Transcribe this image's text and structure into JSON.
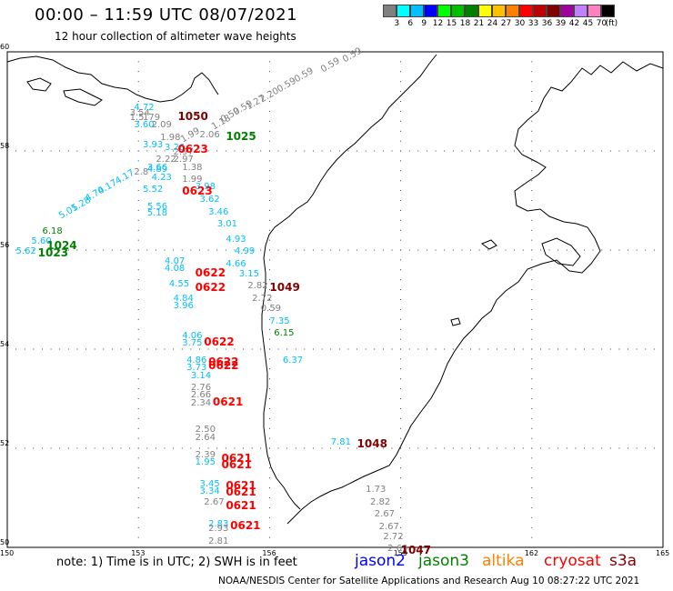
{
  "header": {
    "title": "00:00 – 11:59 UTC 08/07/2021",
    "subtitle": "12 hour collection of altimeter wave heights"
  },
  "colorbar": {
    "colors": [
      "#808080",
      "#00ffff",
      "#00bfff",
      "#0000ff",
      "#00ff00",
      "#00c000",
      "#008000",
      "#ffff00",
      "#ffc000",
      "#ff8000",
      "#ff0000",
      "#c00000",
      "#800000",
      "#a000a0",
      "#c080ff",
      "#ff80c0",
      "#000000"
    ],
    "ticks": [
      "3",
      "6",
      "9",
      "12",
      "15",
      "18",
      "21",
      "24",
      "27",
      "30",
      "33",
      "36",
      "39",
      "42",
      "45",
      "70",
      "(ft)"
    ]
  },
  "axes": {
    "x_ticks": [
      "150",
      "153",
      "156",
      "159",
      "162",
      "165"
    ],
    "y_ticks": [
      "60",
      "58",
      "56",
      "54",
      "52",
      "50"
    ]
  },
  "footer": {
    "note": "note:  1) Time is in UTC;  2) SWH is in feet",
    "credit": "NOAA/NESDIS Center for Satellite Applications and Research    Aug 10 08:27:22 UTC 2021"
  },
  "satellites": [
    {
      "name": "jason2",
      "color": "#0000ff"
    },
    {
      "name": "jason3",
      "color": "#008000"
    },
    {
      "name": "altika",
      "color": "#ff8000"
    },
    {
      "name": "cryosat",
      "color": "#ff0000"
    },
    {
      "name": "s3a",
      "color": "#800000"
    }
  ],
  "measurements": [
    {
      "text": "0.59",
      "lon": 157.7,
      "lat": 59.9,
      "color": "#808080",
      "rot": -30
    },
    {
      "text": "0.59",
      "lon": 157.2,
      "lat": 59.7,
      "color": "#808080",
      "rot": -30
    },
    {
      "text": "0.59",
      "lon": 156.6,
      "lat": 59.5,
      "color": "#808080",
      "rot": -30
    },
    {
      "text": "0.59",
      "lon": 156.2,
      "lat": 59.3,
      "color": "#808080",
      "rot": -30
    },
    {
      "text": "2.20",
      "lon": 155.8,
      "lat": 59.1,
      "color": "#808080",
      "rot": -30
    },
    {
      "text": "1.27",
      "lon": 155.5,
      "lat": 58.95,
      "color": "#808080",
      "rot": -30
    },
    {
      "text": "0.59",
      "lon": 155.2,
      "lat": 58.85,
      "color": "#808080",
      "rot": -30
    },
    {
      "text": "0.59",
      "lon": 154.9,
      "lat": 58.7,
      "color": "#808080",
      "rot": -30
    },
    {
      "text": "1.18",
      "lon": 154.7,
      "lat": 58.55,
      "color": "#808080",
      "rot": -30
    },
    {
      "text": "2.06",
      "lon": 154.4,
      "lat": 58.4,
      "color": "#808080",
      "rot": 0
    },
    {
      "text": "1.99",
      "lon": 154.0,
      "lat": 58.3,
      "color": "#808080",
      "rot": -30
    },
    {
      "text": "4.72",
      "lon": 152.9,
      "lat": 58.95,
      "color": "#00bfff",
      "rot": 0
    },
    {
      "text": "3.54",
      "lon": 152.8,
      "lat": 58.85,
      "color": "#808080",
      "rot": 0
    },
    {
      "text": "1.5",
      "lon": 152.8,
      "lat": 58.75,
      "color": "#808080",
      "rot": 0
    },
    {
      "text": "179",
      "lon": 153.1,
      "lat": 58.75,
      "color": "#808080",
      "rot": 0
    },
    {
      "text": "3.60",
      "lon": 152.9,
      "lat": 58.6,
      "color": "#00bfff",
      "rot": 0
    },
    {
      "text": "2.09",
      "lon": 153.3,
      "lat": 58.6,
      "color": "#808080",
      "rot": 0
    },
    {
      "text": "1.98",
      "lon": 153.5,
      "lat": 58.35,
      "color": "#808080",
      "rot": 0
    },
    {
      "text": "3.93",
      "lon": 153.1,
      "lat": 58.2,
      "color": "#00bfff",
      "rot": 0
    },
    {
      "text": "3.26",
      "lon": 153.6,
      "lat": 58.15,
      "color": "#00bfff",
      "rot": 0
    },
    {
      "text": "2.97",
      "lon": 153.8,
      "lat": 58.05,
      "color": "#808080",
      "rot": 0
    },
    {
      "text": "2.97",
      "lon": 153.8,
      "lat": 57.9,
      "color": "#808080",
      "rot": 0
    },
    {
      "text": "2.22",
      "lon": 153.4,
      "lat": 57.9,
      "color": "#808080",
      "rot": 0
    },
    {
      "text": "3.66",
      "lon": 153.2,
      "lat": 57.75,
      "color": "#00bfff",
      "rot": 0
    },
    {
      "text": "2.8",
      "lon": 152.9,
      "lat": 57.65,
      "color": "#808080",
      "rot": 0
    },
    {
      "text": "4.89",
      "lon": 153.2,
      "lat": 57.7,
      "color": "#00bfff",
      "rot": 0
    },
    {
      "text": "4.23",
      "lon": 153.3,
      "lat": 57.55,
      "color": "#00bfff",
      "rot": 0
    },
    {
      "text": "1.38",
      "lon": 154.0,
      "lat": 57.75,
      "color": "#808080",
      "rot": 0
    },
    {
      "text": "1.99",
      "lon": 154.0,
      "lat": 57.5,
      "color": "#808080",
      "rot": 0
    },
    {
      "text": "5.52",
      "lon": 153.1,
      "lat": 57.3,
      "color": "#00bfff",
      "rot": 0
    },
    {
      "text": "3.98",
      "lon": 154.3,
      "lat": 57.35,
      "color": "#00bfff",
      "rot": 0
    },
    {
      "text": "3.62",
      "lon": 154.4,
      "lat": 57.1,
      "color": "#00bfff",
      "rot": 0
    },
    {
      "text": "5.56",
      "lon": 153.2,
      "lat": 56.95,
      "color": "#00bfff",
      "rot": 0
    },
    {
      "text": "5.18",
      "lon": 153.2,
      "lat": 56.82,
      "color": "#00bfff",
      "rot": 0
    },
    {
      "text": "3.46",
      "lon": 154.6,
      "lat": 56.85,
      "color": "#00bfff",
      "rot": 0
    },
    {
      "text": "3.01",
      "lon": 154.8,
      "lat": 56.6,
      "color": "#00bfff",
      "rot": 0
    },
    {
      "text": "4.93",
      "lon": 155.0,
      "lat": 56.3,
      "color": "#00bfff",
      "rot": 0
    },
    {
      "text": "4.99",
      "lon": 155.2,
      "lat": 56.05,
      "color": "#00bfff",
      "rot": 0
    },
    {
      "text": "4.17",
      "lon": 152.5,
      "lat": 57.45,
      "color": "#00bfff",
      "rot": -30
    },
    {
      "text": "4.17",
      "lon": 152.1,
      "lat": 57.25,
      "color": "#00bfff",
      "rot": -30
    },
    {
      "text": "4.70",
      "lon": 151.8,
      "lat": 57.1,
      "color": "#00bfff",
      "rot": -30
    },
    {
      "text": "5.28",
      "lon": 151.5,
      "lat": 56.9,
      "color": "#00bfff",
      "rot": -30
    },
    {
      "text": "5.01",
      "lon": 151.2,
      "lat": 56.75,
      "color": "#00bfff",
      "rot": -30
    },
    {
      "text": "6.18",
      "lon": 150.8,
      "lat": 56.45,
      "color": "#008000",
      "rot": 0
    },
    {
      "text": "5.60",
      "lon": 150.55,
      "lat": 56.25,
      "color": "#00bfff",
      "rot": 0
    },
    {
      "text": "5.62",
      "lon": 150.2,
      "lat": 56.05,
      "color": "#00bfff",
      "rot": 0
    },
    {
      "text": "4.07",
      "lon": 153.6,
      "lat": 55.85,
      "color": "#00bfff",
      "rot": 0
    },
    {
      "text": "4.08",
      "lon": 153.6,
      "lat": 55.7,
      "color": "#00bfff",
      "rot": 0
    },
    {
      "text": "4.66",
      "lon": 155.0,
      "lat": 55.8,
      "color": "#00bfff",
      "rot": 0
    },
    {
      "text": "3.15",
      "lon": 155.3,
      "lat": 55.6,
      "color": "#00bfff",
      "rot": 0
    },
    {
      "text": "4.55",
      "lon": 153.7,
      "lat": 55.4,
      "color": "#00bfff",
      "rot": 0
    },
    {
      "text": "2.82",
      "lon": 155.5,
      "lat": 55.35,
      "color": "#808080",
      "rot": 0
    },
    {
      "text": "2.72",
      "lon": 155.6,
      "lat": 55.1,
      "color": "#808080",
      "rot": 0
    },
    {
      "text": "4.84",
      "lon": 153.8,
      "lat": 55.1,
      "color": "#00bfff",
      "rot": 0
    },
    {
      "text": "3.96",
      "lon": 153.8,
      "lat": 54.95,
      "color": "#00bfff",
      "rot": 0
    },
    {
      "text": "0.59",
      "lon": 155.8,
      "lat": 54.9,
      "color": "#808080",
      "rot": 0
    },
    {
      "text": "7.35",
      "lon": 156.0,
      "lat": 54.65,
      "color": "#00bfff",
      "rot": 0
    },
    {
      "text": "6.15",
      "lon": 156.1,
      "lat": 54.4,
      "color": "#008000",
      "rot": 0
    },
    {
      "text": "4.06",
      "lon": 154.0,
      "lat": 54.35,
      "color": "#00bfff",
      "rot": 0
    },
    {
      "text": "3.75",
      "lon": 154.0,
      "lat": 54.2,
      "color": "#00bfff",
      "rot": 0
    },
    {
      "text": "6.37",
      "lon": 156.3,
      "lat": 53.85,
      "color": "#00bfff",
      "rot": 0
    },
    {
      "text": "4.86",
      "lon": 154.1,
      "lat": 53.85,
      "color": "#00bfff",
      "rot": 0
    },
    {
      "text": "3.73",
      "lon": 154.1,
      "lat": 53.7,
      "color": "#00bfff",
      "rot": 0
    },
    {
      "text": "3.14",
      "lon": 154.2,
      "lat": 53.55,
      "color": "#00bfff",
      "rot": 0
    },
    {
      "text": "2.76",
      "lon": 154.2,
      "lat": 53.3,
      "color": "#808080",
      "rot": 0
    },
    {
      "text": "2.66",
      "lon": 154.2,
      "lat": 53.15,
      "color": "#808080",
      "rot": 0
    },
    {
      "text": "2.34",
      "lon": 154.2,
      "lat": 53.0,
      "color": "#808080",
      "rot": 0
    },
    {
      "text": "2.50",
      "lon": 154.3,
      "lat": 52.45,
      "color": "#808080",
      "rot": 0
    },
    {
      "text": "2.64",
      "lon": 154.3,
      "lat": 52.3,
      "color": "#808080",
      "rot": 0
    },
    {
      "text": "7.81",
      "lon": 157.4,
      "lat": 52.2,
      "color": "#00bfff",
      "rot": 0
    },
    {
      "text": "2.39",
      "lon": 154.3,
      "lat": 51.95,
      "color": "#808080",
      "rot": 0
    },
    {
      "text": "1.95",
      "lon": 154.3,
      "lat": 51.8,
      "color": "#00bfff",
      "rot": 0
    },
    {
      "text": "3.45",
      "lon": 154.4,
      "lat": 51.35,
      "color": "#00bfff",
      "rot": 0
    },
    {
      "text": "3.34",
      "lon": 154.4,
      "lat": 51.22,
      "color": "#00bfff",
      "rot": 0
    },
    {
      "text": "2.67",
      "lon": 154.5,
      "lat": 51.0,
      "color": "#808080",
      "rot": 0
    },
    {
      "text": "1.73",
      "lon": 158.2,
      "lat": 51.25,
      "color": "#808080",
      "rot": 0
    },
    {
      "text": "2.82",
      "lon": 158.3,
      "lat": 51.0,
      "color": "#808080",
      "rot": 0
    },
    {
      "text": "2.67",
      "lon": 158.4,
      "lat": 50.75,
      "color": "#808080",
      "rot": 0
    },
    {
      "text": "2.67",
      "lon": 158.5,
      "lat": 50.5,
      "color": "#808080",
      "rot": 0
    },
    {
      "text": "2.72",
      "lon": 158.6,
      "lat": 50.3,
      "color": "#808080",
      "rot": 0
    },
    {
      "text": "2.69",
      "lon": 158.7,
      "lat": 50.05,
      "color": "#808080",
      "rot": 0
    },
    {
      "text": "2.83",
      "lon": 154.6,
      "lat": 50.55,
      "color": "#00bfff",
      "rot": 0
    },
    {
      "text": "2.93",
      "lon": 154.6,
      "lat": 50.45,
      "color": "#808080",
      "rot": 0
    },
    {
      "text": "2.81",
      "lon": 154.6,
      "lat": 50.2,
      "color": "#808080",
      "rot": 0
    }
  ],
  "passes": [
    {
      "text": "1050",
      "lon": 153.9,
      "lat": 58.8,
      "color": "#800000"
    },
    {
      "text": "0623",
      "lon": 153.9,
      "lat": 58.15,
      "color": "#ff0000"
    },
    {
      "text": "1025",
      "lon": 155.0,
      "lat": 58.4,
      "color": "#008000"
    },
    {
      "text": "0623",
      "lon": 154.0,
      "lat": 57.3,
      "color": "#ff0000"
    },
    {
      "text": "1024",
      "lon": 150.9,
      "lat": 56.2,
      "color": "#008000"
    },
    {
      "text": "1023",
      "lon": 150.7,
      "lat": 56.05,
      "color": "#008000"
    },
    {
      "text": "0622",
      "lon": 154.3,
      "lat": 55.65,
      "color": "#ff0000"
    },
    {
      "text": "0622",
      "lon": 154.3,
      "lat": 55.35,
      "color": "#ff0000"
    },
    {
      "text": "1049",
      "lon": 156.0,
      "lat": 55.35,
      "color": "#800000"
    },
    {
      "text": "0622",
      "lon": 154.5,
      "lat": 54.25,
      "color": "#ff0000"
    },
    {
      "text": "0622",
      "lon": 154.6,
      "lat": 53.85,
      "color": "#ff0000"
    },
    {
      "text": "0622",
      "lon": 154.6,
      "lat": 53.78,
      "color": "#ff0000"
    },
    {
      "text": "0621",
      "lon": 154.7,
      "lat": 53.05,
      "color": "#ff0000"
    },
    {
      "text": "1048",
      "lon": 158.0,
      "lat": 52.2,
      "color": "#800000"
    },
    {
      "text": "0621",
      "lon": 154.9,
      "lat": 51.9,
      "color": "#ff0000"
    },
    {
      "text": "0621",
      "lon": 154.9,
      "lat": 51.78,
      "color": "#ff0000"
    },
    {
      "text": "0621",
      "lon": 155.0,
      "lat": 51.35,
      "color": "#ff0000"
    },
    {
      "text": "0621",
      "lon": 155.0,
      "lat": 51.23,
      "color": "#ff0000"
    },
    {
      "text": "0621",
      "lon": 155.0,
      "lat": 50.95,
      "color": "#ff0000"
    },
    {
      "text": "0621",
      "lon": 155.1,
      "lat": 50.55,
      "color": "#ff0000"
    },
    {
      "text": "1047",
      "lon": 159.0,
      "lat": 50.05,
      "color": "#800000"
    }
  ]
}
